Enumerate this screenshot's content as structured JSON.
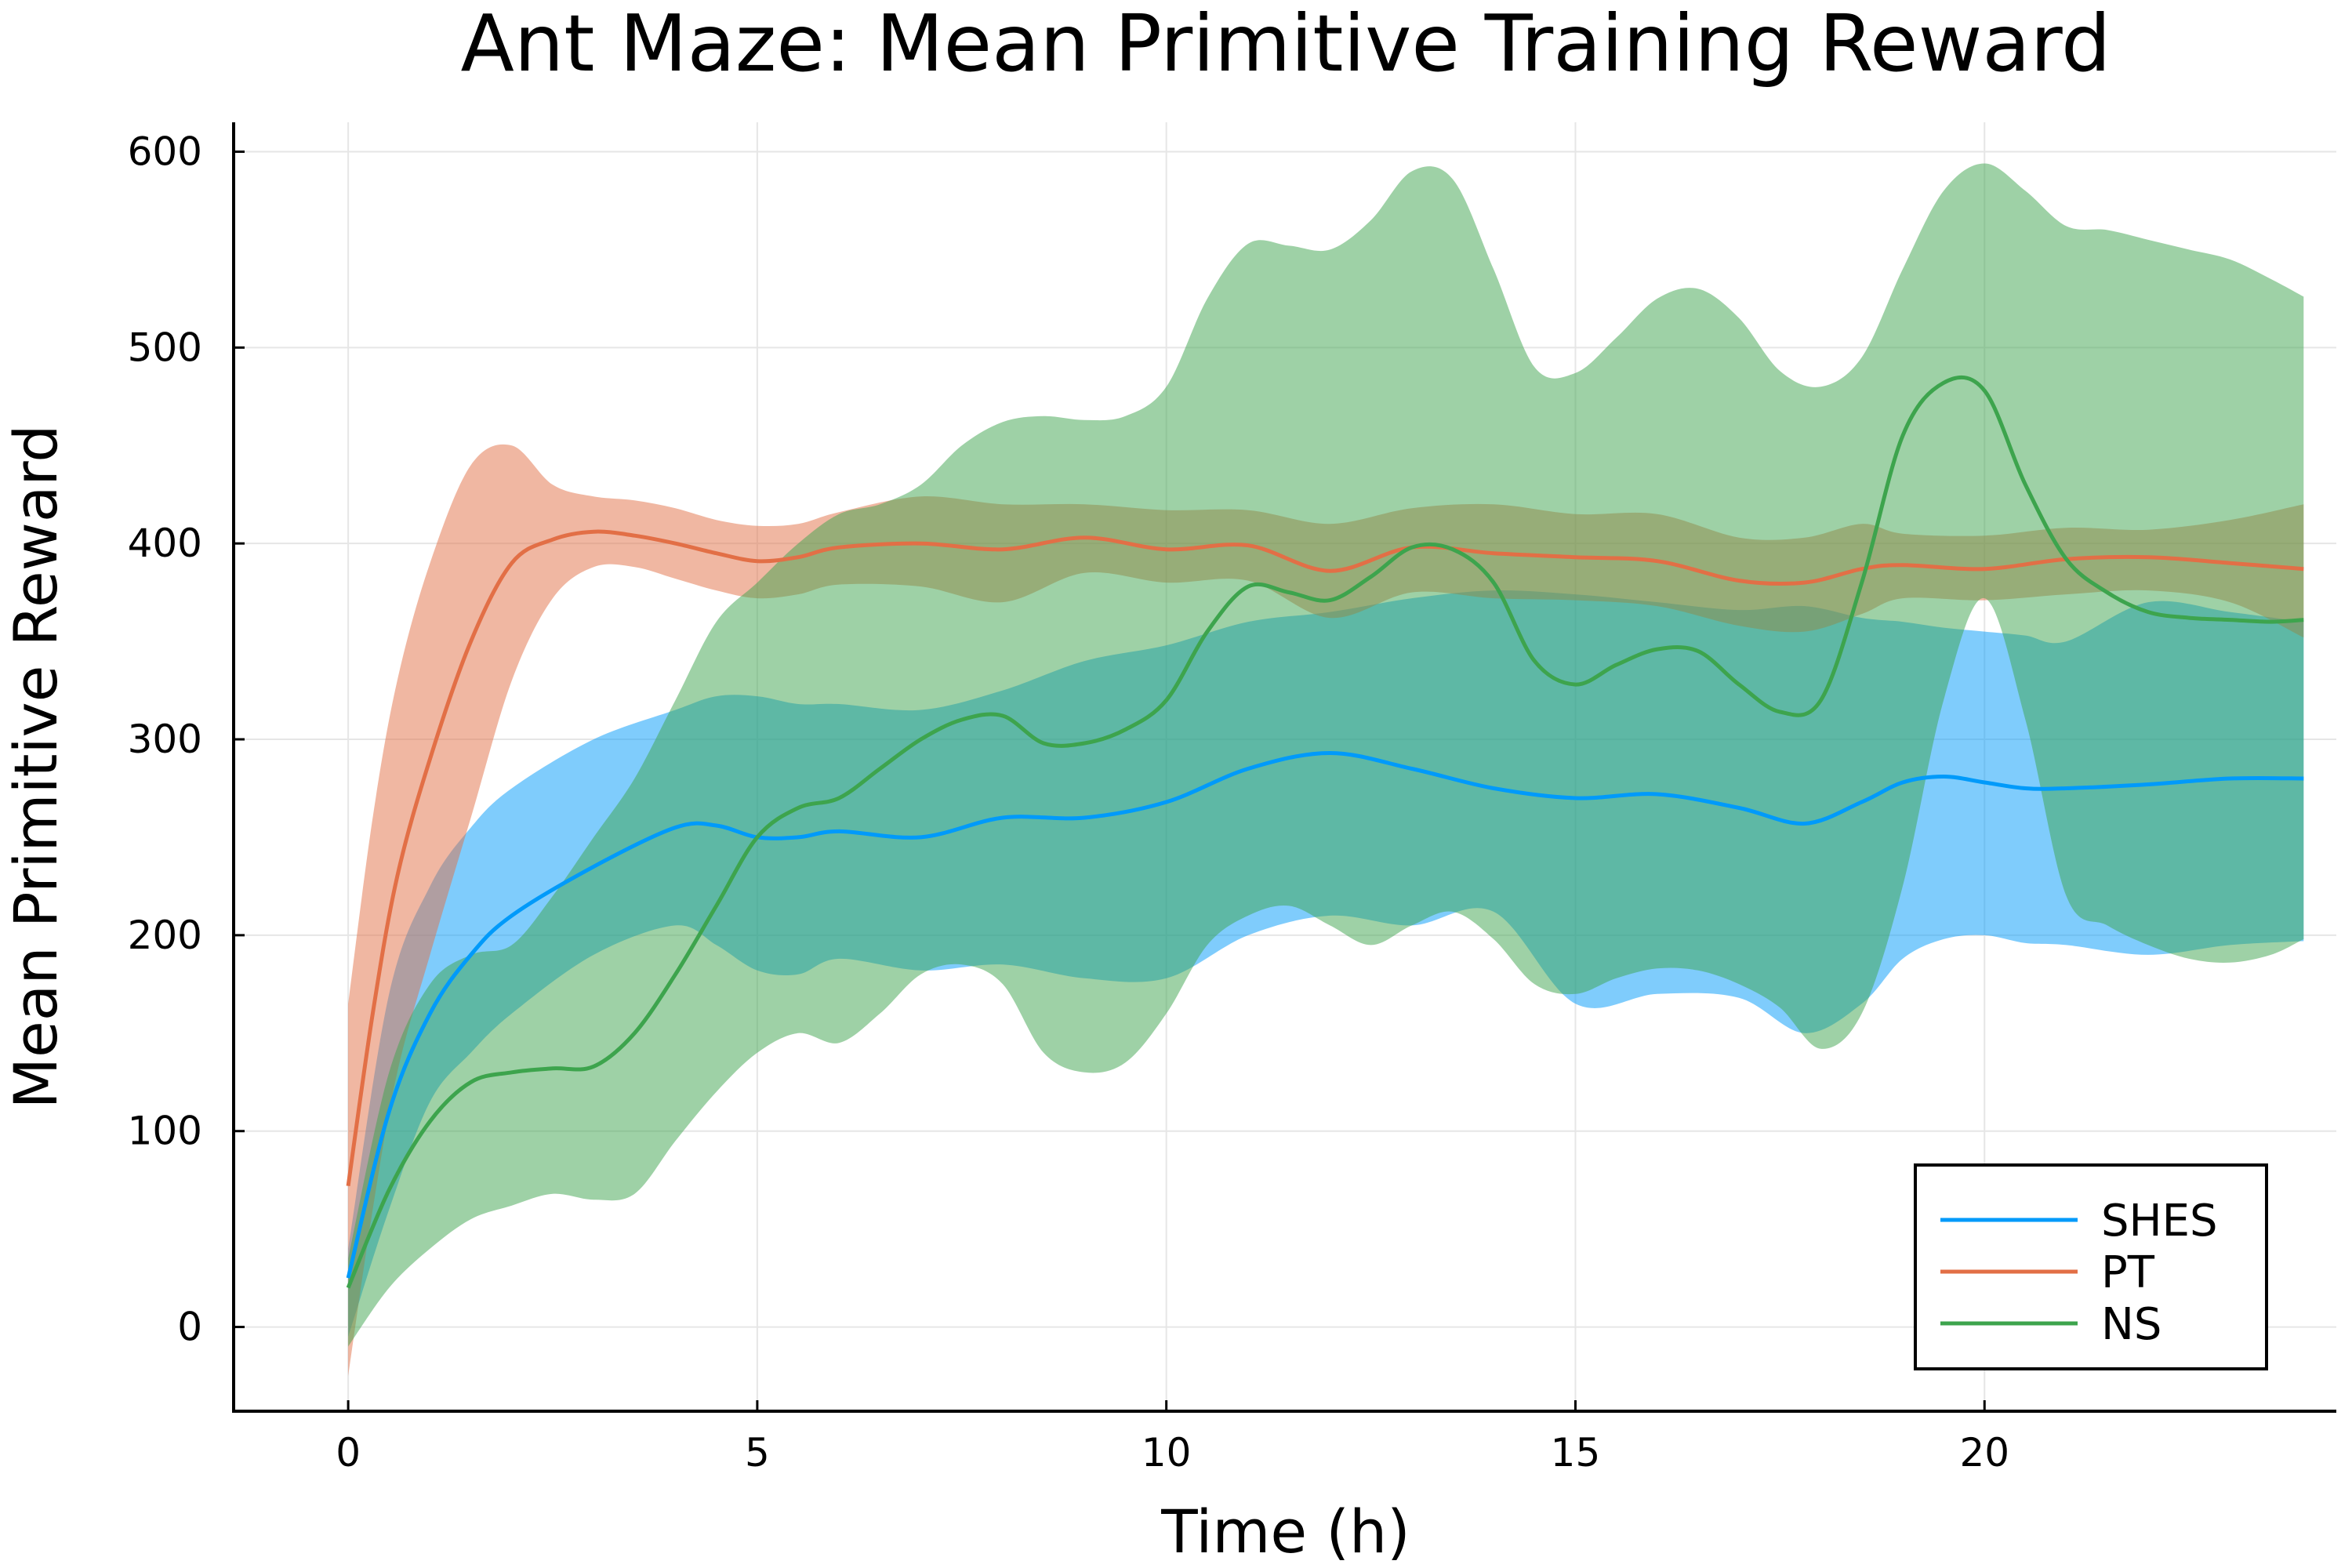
{
  "chart_data": {
    "type": "line",
    "title": "Ant Maze: Mean Primitive Training Reward",
    "xlabel": "Time (h)",
    "ylabel": "Mean Primitive Reward",
    "xlim": [
      -1.4,
      24.3
    ],
    "ylim": [
      -43,
      615
    ],
    "xticks": [
      0,
      5,
      10,
      15,
      20
    ],
    "yticks": [
      0,
      100,
      200,
      300,
      400,
      500,
      600
    ],
    "grid": true,
    "legend_position": "bottom-right",
    "series": [
      {
        "name": "SHES",
        "color": "#009AFA",
        "x": [
          0,
          0.5,
          1,
          1.5,
          2,
          3,
          4,
          4.5,
          5,
          5.5,
          6,
          7,
          8,
          9,
          10,
          11,
          12,
          13,
          14,
          15,
          16,
          17,
          17.8,
          18.5,
          19,
          19.5,
          20,
          20.5,
          21,
          22,
          23,
          23.9
        ],
        "mean": [
          25,
          110,
          160,
          190,
          210,
          235,
          255,
          256,
          250,
          250,
          253,
          250,
          260,
          260,
          268,
          285,
          293,
          285,
          275,
          270,
          272,
          265,
          257,
          268,
          278,
          281,
          278,
          275,
          275,
          277,
          280,
          280
        ],
        "upper": [
          40,
          170,
          225,
          255,
          275,
          300,
          315,
          322,
          322,
          318,
          318,
          315,
          325,
          340,
          348,
          360,
          365,
          372,
          376,
          374,
          370,
          366,
          368,
          362,
          360,
          357,
          355,
          353,
          350,
          370,
          365,
          360
        ],
        "lower": [
          -5,
          60,
          115,
          140,
          160,
          190,
          205,
          195,
          182,
          180,
          188,
          182,
          185,
          178,
          178,
          200,
          210,
          205,
          212,
          165,
          170,
          168,
          150,
          165,
          188,
          198,
          200,
          196,
          195,
          190,
          195,
          197
        ]
      },
      {
        "name": "PT",
        "color": "#E26F46",
        "x": [
          0,
          0.3,
          0.6,
          1,
          1.5,
          2,
          2.5,
          3,
          3.5,
          4,
          4.5,
          5,
          5.5,
          6,
          7,
          8,
          9,
          10,
          11,
          12,
          13,
          14,
          15,
          16,
          17,
          17.8,
          18.5,
          19,
          20,
          21,
          22,
          23,
          23.9
        ],
        "mean": [
          72,
          160,
          230,
          290,
          350,
          390,
          402,
          406,
          404,
          400,
          395,
          391,
          393,
          398,
          400,
          397,
          403,
          397,
          399,
          386,
          398,
          395,
          393,
          391,
          381,
          380,
          387,
          389,
          387,
          392,
          393,
          390,
          387
        ],
        "upper": [
          165,
          260,
          330,
          390,
          440,
          450,
          430,
          424,
          422,
          418,
          412,
          409,
          410,
          416,
          424,
          420,
          420,
          417,
          417,
          410,
          418,
          420,
          415,
          415,
          403,
          403,
          410,
          405,
          404,
          408,
          407,
          412,
          420
        ],
        "lower": [
          -25,
          60,
          130,
          190,
          260,
          330,
          372,
          388,
          388,
          382,
          376,
          372,
          374,
          379,
          378,
          370,
          385,
          380,
          381,
          362,
          375,
          372,
          371,
          368,
          358,
          355,
          364,
          372,
          371,
          374,
          376,
          370,
          352
        ]
      },
      {
        "name": "NS",
        "color": "#3DA44D",
        "x": [
          0,
          0.5,
          1,
          1.5,
          2,
          2.5,
          3,
          3.5,
          4,
          4.5,
          5,
          5.5,
          6,
          6.5,
          7,
          7.5,
          8,
          8.5,
          9,
          9.5,
          10,
          10.5,
          11,
          11.5,
          12,
          12.5,
          13,
          13.5,
          14,
          14.5,
          15,
          15.5,
          16,
          16.5,
          17,
          17.5,
          18,
          18.5,
          19,
          19.5,
          20,
          20.5,
          21,
          21.5,
          22,
          22.5,
          23,
          23.5,
          23.9
        ],
        "mean": [
          20,
          70,
          105,
          125,
          130,
          132,
          133,
          150,
          180,
          215,
          250,
          265,
          270,
          285,
          300,
          310,
          312,
          298,
          298,
          305,
          320,
          355,
          378,
          375,
          371,
          383,
          398,
          397,
          380,
          340,
          328,
          338,
          346,
          345,
          328,
          314,
          320,
          380,
          455,
          482,
          478,
          430,
          392,
          375,
          365,
          362,
          361,
          360,
          361
        ],
        "upper": [
          35,
          130,
          175,
          190,
          195,
          220,
          250,
          280,
          320,
          360,
          380,
          400,
          415,
          420,
          430,
          450,
          462,
          465,
          463,
          465,
          480,
          525,
          553,
          552,
          550,
          565,
          590,
          586,
          540,
          490,
          487,
          505,
          525,
          530,
          515,
          488,
          480,
          495,
          540,
          580,
          594,
          580,
          562,
          560,
          555,
          550,
          545,
          535,
          526
        ],
        "lower": [
          -10,
          20,
          40,
          55,
          62,
          68,
          65,
          68,
          95,
          120,
          140,
          150,
          145,
          160,
          180,
          185,
          175,
          140,
          130,
          135,
          160,
          195,
          210,
          215,
          205,
          195,
          205,
          212,
          198,
          175,
          170,
          178,
          183,
          182,
          175,
          163,
          142,
          160,
          225,
          320,
          372,
          310,
          220,
          205,
          195,
          188,
          186,
          190,
          198
        ]
      }
    ]
  }
}
